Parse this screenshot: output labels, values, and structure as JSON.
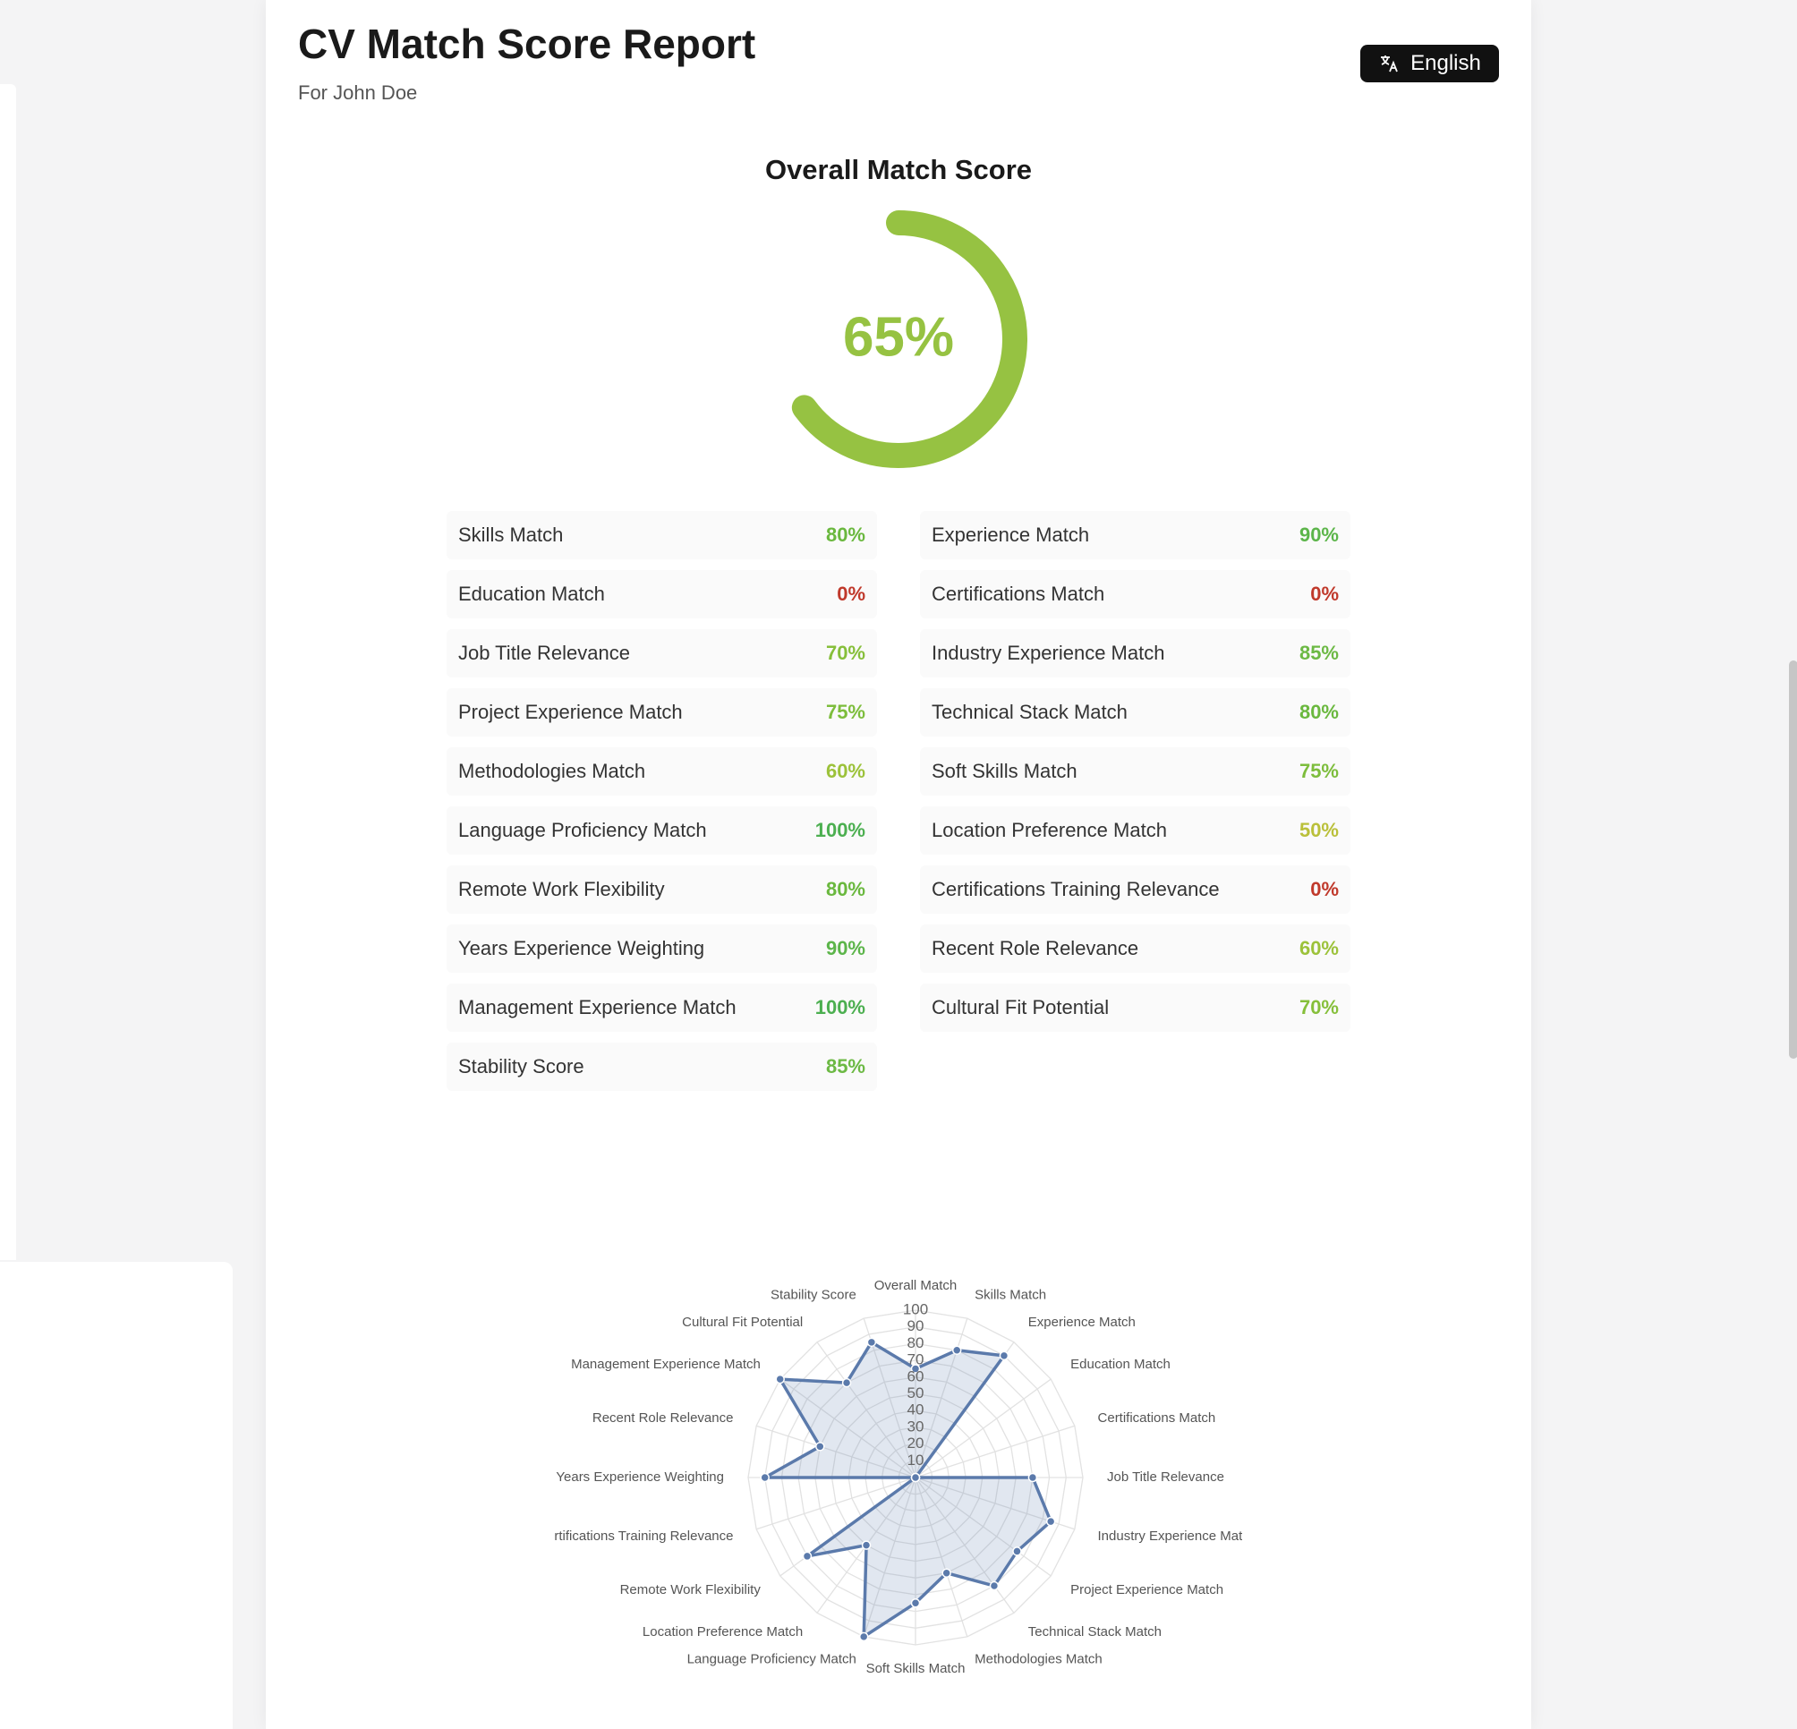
{
  "header": {
    "title": "CV Match Score Report",
    "subtitle": "For John Doe",
    "language_button": "English"
  },
  "overall": {
    "title": "Overall Match Score",
    "value": 65,
    "value_label": "65%",
    "range": [
      0,
      100
    ],
    "color": "#96c242"
  },
  "metrics": [
    {
      "label": "Skills Match",
      "value": "80%",
      "color": "#6ab83e"
    },
    {
      "label": "Experience Match",
      "value": "90%",
      "color": "#5cb54a"
    },
    {
      "label": "Education Match",
      "value": "0%",
      "color": "#c0392b"
    },
    {
      "label": "Certifications Match",
      "value": "0%",
      "color": "#c0392b"
    },
    {
      "label": "Job Title Relevance",
      "value": "70%",
      "color": "#86bf3a"
    },
    {
      "label": "Industry Experience Match",
      "value": "85%",
      "color": "#6cb944"
    },
    {
      "label": "Project Experience Match",
      "value": "75%",
      "color": "#7dbd3c"
    },
    {
      "label": "Technical Stack Match",
      "value": "80%",
      "color": "#6ab83e"
    },
    {
      "label": "Methodologies Match",
      "value": "60%",
      "color": "#9cc23a"
    },
    {
      "label": "Soft Skills Match",
      "value": "75%",
      "color": "#7dbd3c"
    },
    {
      "label": "Language Proficiency Match",
      "value": "100%",
      "color": "#4caf50"
    },
    {
      "label": "Location Preference Match",
      "value": "50%",
      "color": "#bac03a"
    },
    {
      "label": "Remote Work Flexibility",
      "value": "80%",
      "color": "#6ab83e"
    },
    {
      "label": "Certifications Training Relevance",
      "value": "0%",
      "color": "#c0392b"
    },
    {
      "label": "Years Experience Weighting",
      "value": "90%",
      "color": "#5cb54a"
    },
    {
      "label": "Recent Role Relevance",
      "value": "60%",
      "color": "#9cc23a"
    },
    {
      "label": "Management Experience Match",
      "value": "100%",
      "color": "#4caf50"
    },
    {
      "label": "Cultural Fit Potential",
      "value": "70%",
      "color": "#86bf3a"
    },
    {
      "label": "Stability Score",
      "value": "85%",
      "color": "#6cb944"
    }
  ],
  "chart_data": {
    "type": "radar",
    "categories": [
      "Overall Match",
      "Skills Match",
      "Experience Match",
      "Education Match",
      "Certifications Match",
      "Job Title Relevance",
      "Industry Experience Match",
      "Project Experience Match",
      "Technical Stack Match",
      "Methodologies Match",
      "Soft Skills Match",
      "Language Proficiency Match",
      "Location Preference Match",
      "Remote Work Flexibility",
      "Certifications Training Relevance",
      "Years Experience Weighting",
      "Recent Role Relevance",
      "Management Experience Match",
      "Cultural Fit Potential",
      "Stability Score"
    ],
    "values": [
      65,
      80,
      90,
      0,
      0,
      70,
      85,
      75,
      80,
      60,
      75,
      100,
      50,
      80,
      0,
      90,
      60,
      100,
      70,
      85
    ],
    "rlim": [
      0,
      100
    ],
    "rticks": [
      10,
      20,
      30,
      40,
      50,
      60,
      70,
      80,
      90,
      100
    ],
    "color": "#5b7aab",
    "grid": true
  }
}
